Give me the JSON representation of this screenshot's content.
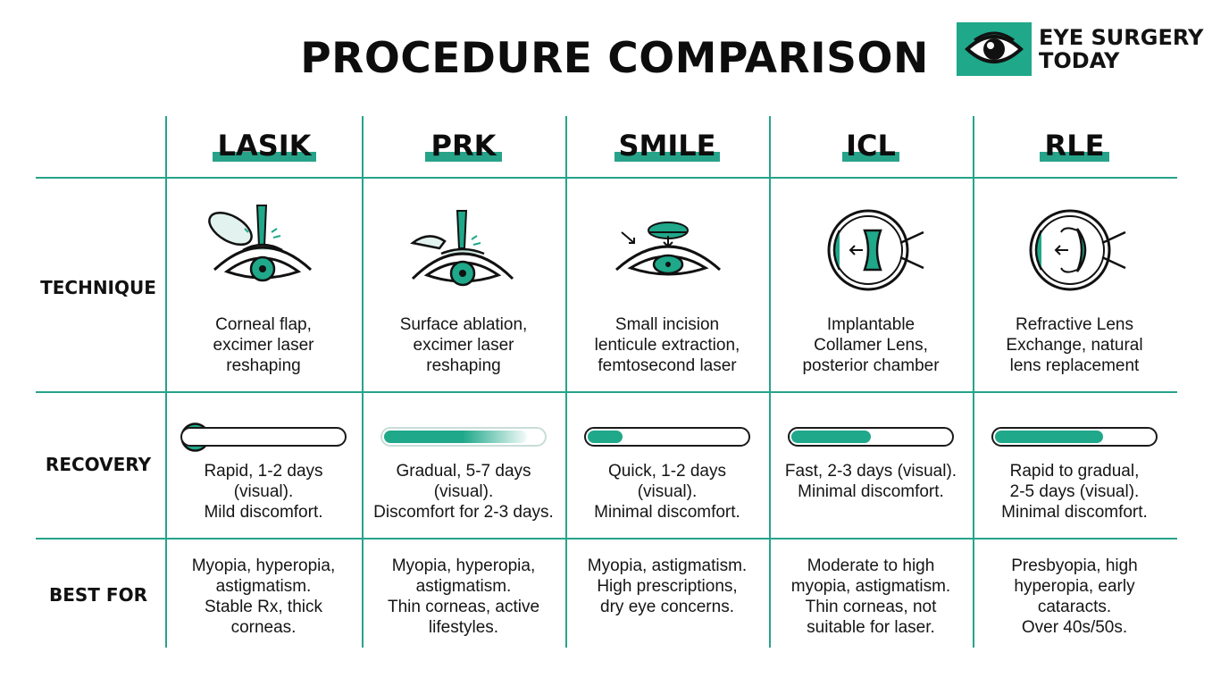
{
  "title": "PROCEDURE COMPARISON",
  "brand": {
    "line1": "EYE SURGERY",
    "line2": "TODAY",
    "icon": "eye-icon"
  },
  "colors": {
    "accent": "#1fa88a",
    "line": "#27a38a",
    "ink": "#111111"
  },
  "rows": {
    "technique": "TECHNIQUE",
    "recovery": "RECOVERY",
    "best_for": "BEST FOR"
  },
  "procedures": [
    {
      "name": "LASIK",
      "illustration": "corneal-flap-laser-icon",
      "technique": "Corneal flap,\nexcimer laser\nreshaping",
      "recovery_level": 0.0,
      "recovery_marker": "check-icon",
      "recovery": "Rapid, 1-2 days\n(visual).\nMild discomfort.",
      "best_for": "Myopia, hyperopia,\nastigmatism.\nStable Rx, thick\ncorneas."
    },
    {
      "name": "PRK",
      "illustration": "surface-ablation-icon",
      "technique": "Surface ablation,\nexcimer laser\nreshaping",
      "recovery_level": 0.9,
      "recovery": "Gradual, 5-7 days\n(visual).\nDiscomfort for 2-3 days.",
      "best_for": "Myopia, hyperopia,\nastigmatism.\nThin corneas, active\nlifestyles."
    },
    {
      "name": "SMILE",
      "illustration": "lenticule-extraction-icon",
      "technique": "Small incision\nlenticule extraction,\nfemtosecond laser",
      "recovery_level": 0.22,
      "recovery": "Quick, 1-2 days\n(visual).\nMinimal discomfort.",
      "best_for": "Myopia, astigmatism.\nHigh prescriptions,\ndry eye concerns."
    },
    {
      "name": "ICL",
      "illustration": "implantable-lens-icon",
      "technique": "Implantable\nCollamer Lens,\nposterior chamber",
      "recovery_level": 0.5,
      "recovery": "Fast, 2-3 days (visual).\nMinimal discomfort.",
      "best_for": "Moderate to high\nmyopia, astigmatism.\nThin corneas, not\nsuitable for laser."
    },
    {
      "name": "RLE",
      "illustration": "lens-exchange-icon",
      "technique": "Refractive Lens\nExchange, natural\nlens replacement",
      "recovery_level": 0.68,
      "recovery": "Rapid to gradual,\n2-5 days (visual).\nMinimal discomfort.",
      "best_for": "Presbyopia, high\nhyperopia, early\ncataracts.\nOver 40s/50s."
    }
  ]
}
